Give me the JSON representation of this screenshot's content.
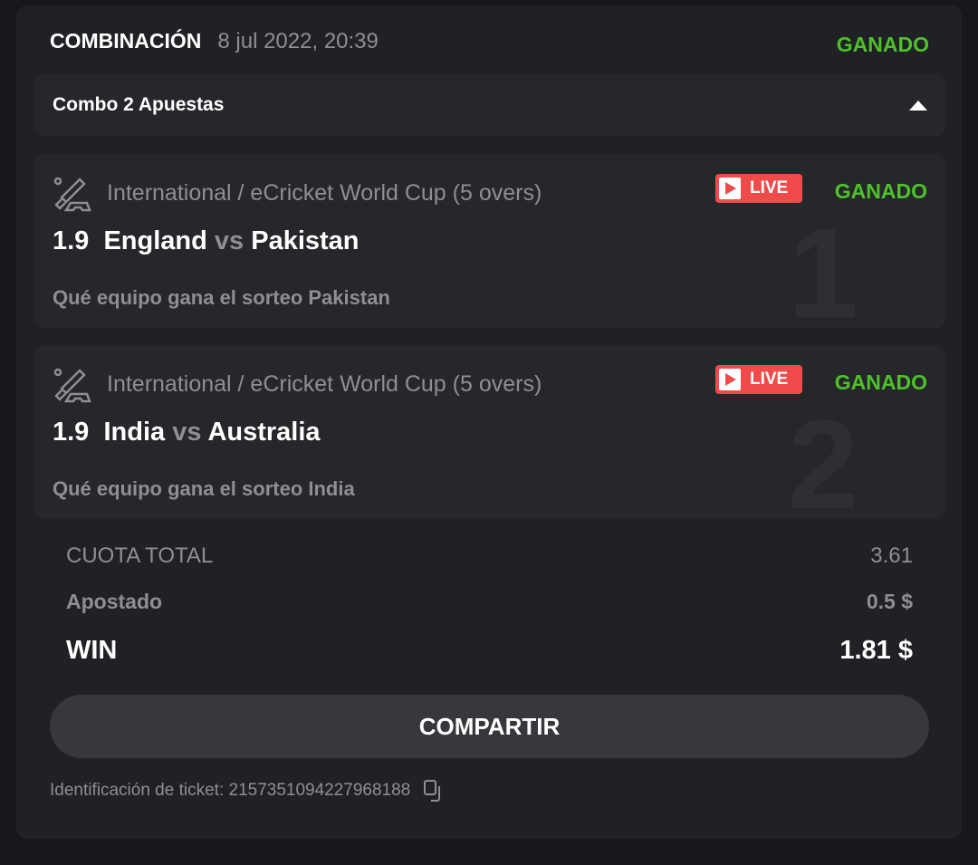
{
  "header": {
    "title": "COMBINACIÓN",
    "date": "8 jul 2022, 20:39",
    "status": "GANADO"
  },
  "combo": {
    "label": "Combo 2 Apuestas",
    "toggle_icon": "triangle-up-icon"
  },
  "bets": [
    {
      "number": "1",
      "league": "International / eCricket World Cup (5 overs)",
      "live": "LIVE",
      "status": "GANADO",
      "odds": "1.9",
      "home": "England",
      "vs": "vs",
      "away": "Pakistan",
      "selection": "Qué equipo gana el sorteo Pakistan"
    },
    {
      "number": "2",
      "league": "International / eCricket World Cup (5 overs)",
      "live": "LIVE",
      "status": "GANADO",
      "odds": "1.9",
      "home": "India",
      "vs": "vs",
      "away": "Australia",
      "selection": "Qué equipo gana el sorteo India"
    }
  ],
  "summary": {
    "total_odds_label": "CUOTA TOTAL",
    "total_odds": "3.61",
    "staked_label": "Apostado",
    "staked": "0.5 $",
    "win_label": "WIN",
    "win": "1.81 $"
  },
  "share_label": "COMPARTIR",
  "ticket": {
    "label": "Identificación de ticket: 2157351094227968188",
    "copy_icon": "copy-icon"
  },
  "colors": {
    "won": "#4ec12b",
    "live": "#ef4b4b",
    "background": "#202125"
  }
}
